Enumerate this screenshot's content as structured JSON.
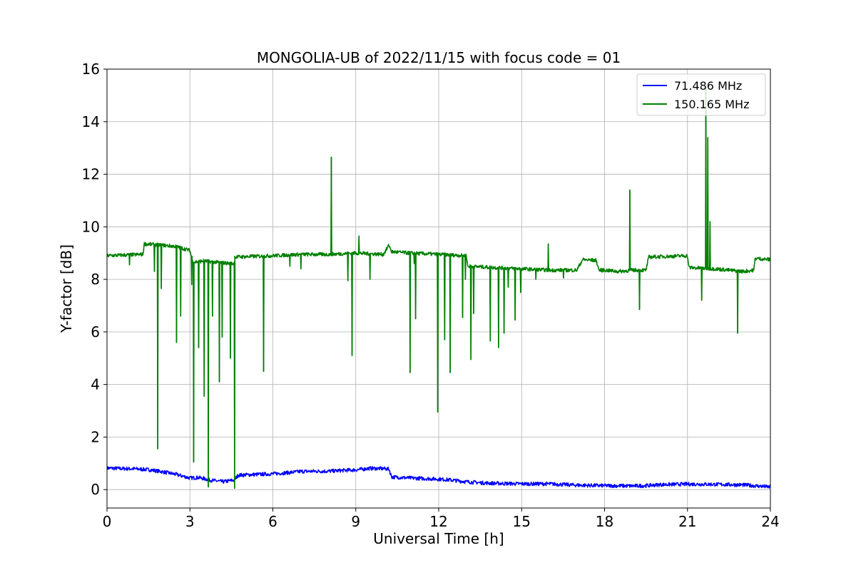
{
  "chart_data": {
    "type": "line",
    "title": "MONGOLIA-UB of 2022/11/15 with focus code = 01",
    "xlabel": "Universal Time [h]",
    "ylabel": "Y-factor [dB]",
    "xlim": [
      0,
      24
    ],
    "ylim": [
      -0.7,
      16
    ],
    "xticks": [
      0,
      3,
      6,
      9,
      12,
      15,
      18,
      21,
      24
    ],
    "yticks": [
      0,
      2,
      4,
      6,
      8,
      10,
      12,
      14,
      16
    ],
    "grid": true,
    "legend_position": "upper right",
    "series": [
      {
        "name": "71.486 MHz",
        "color": "#0000ff",
        "points": [
          [
            0.0,
            0.82
          ],
          [
            0.5,
            0.8
          ],
          [
            1.0,
            0.79
          ],
          [
            1.5,
            0.76
          ],
          [
            2.0,
            0.68
          ],
          [
            2.5,
            0.58
          ],
          [
            3.0,
            0.44
          ],
          [
            3.3,
            0.46
          ],
          [
            3.5,
            0.42
          ],
          [
            3.8,
            0.35
          ],
          [
            4.2,
            0.3
          ],
          [
            4.6,
            0.36
          ],
          [
            4.75,
            0.55
          ],
          [
            5.5,
            0.58
          ],
          [
            6.0,
            0.6
          ],
          [
            6.5,
            0.64
          ],
          [
            7.0,
            0.69
          ],
          [
            7.5,
            0.7
          ],
          [
            8.0,
            0.7
          ],
          [
            8.5,
            0.73
          ],
          [
            9.0,
            0.75
          ],
          [
            9.5,
            0.81
          ],
          [
            10.0,
            0.8
          ],
          [
            10.2,
            0.78
          ],
          [
            10.3,
            0.48
          ],
          [
            11.0,
            0.44
          ],
          [
            12.0,
            0.4
          ],
          [
            12.5,
            0.36
          ],
          [
            13.0,
            0.3
          ],
          [
            13.5,
            0.26
          ],
          [
            14.0,
            0.24
          ],
          [
            15.0,
            0.22
          ],
          [
            16.0,
            0.22
          ],
          [
            17.0,
            0.17
          ],
          [
            18.0,
            0.15
          ],
          [
            19.0,
            0.14
          ],
          [
            19.5,
            0.15
          ],
          [
            20.0,
            0.19
          ],
          [
            21.0,
            0.21
          ],
          [
            22.0,
            0.2
          ],
          [
            23.0,
            0.18
          ],
          [
            24.0,
            0.1
          ]
        ],
        "spikes": []
      },
      {
        "name": "150.165 MHz",
        "color": "#008000",
        "points": [
          [
            0.0,
            8.9
          ],
          [
            1.3,
            8.95
          ],
          [
            1.35,
            9.35
          ],
          [
            2.0,
            9.3
          ],
          [
            2.5,
            9.25
          ],
          [
            3.0,
            9.1
          ],
          [
            3.1,
            8.65
          ],
          [
            3.5,
            8.7
          ],
          [
            4.0,
            8.65
          ],
          [
            4.5,
            8.6
          ],
          [
            4.6,
            8.6
          ],
          [
            4.62,
            8.85
          ],
          [
            5.5,
            8.88
          ],
          [
            6.0,
            8.9
          ],
          [
            7.0,
            8.95
          ],
          [
            8.0,
            8.95
          ],
          [
            9.0,
            9.0
          ],
          [
            10.0,
            8.95
          ],
          [
            10.2,
            9.3
          ],
          [
            10.3,
            9.05
          ],
          [
            11.0,
            9.0
          ],
          [
            12.0,
            8.95
          ],
          [
            13.0,
            8.9
          ],
          [
            13.05,
            8.5
          ],
          [
            14.0,
            8.45
          ],
          [
            15.0,
            8.4
          ],
          [
            16.0,
            8.35
          ],
          [
            17.0,
            8.35
          ],
          [
            17.2,
            8.75
          ],
          [
            17.7,
            8.72
          ],
          [
            17.8,
            8.35
          ],
          [
            18.0,
            8.35
          ],
          [
            18.5,
            8.3
          ],
          [
            19.0,
            8.35
          ],
          [
            19.5,
            8.35
          ],
          [
            19.6,
            8.85
          ],
          [
            21.0,
            8.9
          ],
          [
            21.05,
            8.45
          ],
          [
            22.0,
            8.4
          ],
          [
            23.0,
            8.3
          ],
          [
            23.4,
            8.35
          ],
          [
            23.45,
            8.8
          ],
          [
            24.0,
            8.75
          ]
        ],
        "spikes": [
          [
            0.8,
            8.55
          ],
          [
            1.7,
            8.3
          ],
          [
            1.82,
            1.55
          ],
          [
            1.95,
            7.65
          ],
          [
            2.5,
            5.6
          ],
          [
            2.65,
            6.6
          ],
          [
            3.05,
            7.8
          ],
          [
            3.12,
            1.05
          ],
          [
            3.3,
            5.4
          ],
          [
            3.5,
            3.55
          ],
          [
            3.65,
            0.1
          ],
          [
            3.8,
            6.6
          ],
          [
            4.05,
            4.1
          ],
          [
            4.15,
            5.8
          ],
          [
            4.45,
            5.0
          ],
          [
            4.6,
            0.05
          ],
          [
            5.65,
            4.5
          ],
          [
            6.6,
            8.5
          ],
          [
            7.0,
            8.4
          ],
          [
            8.1,
            12.65
          ],
          [
            8.7,
            7.95
          ],
          [
            8.85,
            5.1
          ],
          [
            9.1,
            9.65
          ],
          [
            9.5,
            8.0
          ],
          [
            10.95,
            4.45
          ],
          [
            11.1,
            8.6
          ],
          [
            11.15,
            6.5
          ],
          [
            11.95,
            2.95
          ],
          [
            12.2,
            5.7
          ],
          [
            12.4,
            4.45
          ],
          [
            12.85,
            6.55
          ],
          [
            12.95,
            8.0
          ],
          [
            13.15,
            4.95
          ],
          [
            13.25,
            6.7
          ],
          [
            13.85,
            5.65
          ],
          [
            14.15,
            5.4
          ],
          [
            14.35,
            5.95
          ],
          [
            14.5,
            7.7
          ],
          [
            14.75,
            6.45
          ],
          [
            14.95,
            7.5
          ],
          [
            15.5,
            8.0
          ],
          [
            15.95,
            9.35
          ],
          [
            16.5,
            8.05
          ],
          [
            18.9,
            11.4
          ],
          [
            19.25,
            6.85
          ],
          [
            21.5,
            7.2
          ],
          [
            21.65,
            15.35
          ],
          [
            21.72,
            13.4
          ],
          [
            21.8,
            10.2
          ],
          [
            22.8,
            5.95
          ],
          [
            23.35,
            8.3
          ]
        ]
      }
    ]
  }
}
